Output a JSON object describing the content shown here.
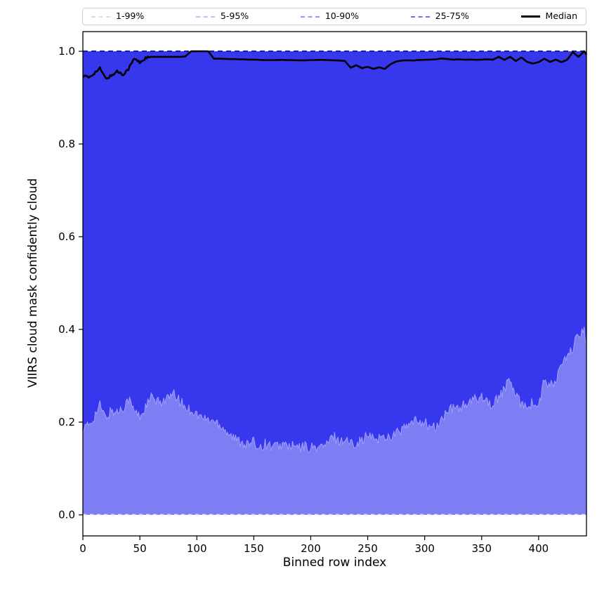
{
  "legend": {
    "items": [
      {
        "label": "1-99%",
        "color": "#d9d9f9",
        "style": "dashed",
        "weight": 2
      },
      {
        "label": "5-95%",
        "color": "#bebef6",
        "style": "dashed",
        "weight": 2
      },
      {
        "label": "10-90%",
        "color": "#9898f2",
        "style": "dashed",
        "weight": 2
      },
      {
        "label": "25-75%",
        "color": "#7171ef",
        "style": "dashed",
        "weight": 2
      },
      {
        "label": "Median",
        "color": "#000000",
        "style": "solid",
        "weight": 3
      }
    ]
  },
  "axes": {
    "xlabel": "Binned row index",
    "ylabel": "VIIRS cloud mask confidently cloud",
    "x_ticks": [
      {
        "value": 0,
        "label": "0"
      },
      {
        "value": 50,
        "label": "50"
      },
      {
        "value": 100,
        "label": "100"
      },
      {
        "value": 150,
        "label": "150"
      },
      {
        "value": 200,
        "label": "200"
      },
      {
        "value": 250,
        "label": "250"
      },
      {
        "value": 300,
        "label": "300"
      },
      {
        "value": 350,
        "label": "350"
      },
      {
        "value": 400,
        "label": "400"
      }
    ],
    "y_ticks": [
      {
        "value": 0.0,
        "label": "0.0"
      },
      {
        "value": 0.2,
        "label": "0.2"
      },
      {
        "value": 0.4,
        "label": "0.4"
      },
      {
        "value": 0.6,
        "label": "0.6"
      },
      {
        "value": 0.8,
        "label": "0.8"
      },
      {
        "value": 1.0,
        "label": "1.0"
      }
    ],
    "xlim": [
      0,
      442
    ],
    "ylim": [
      -0.045,
      1.043
    ]
  },
  "chart_data": {
    "type": "area",
    "title": "",
    "xlabel": "Binned row index",
    "ylabel": "VIIRS cloud mask confidently cloud",
    "legend_position": "top",
    "grid": false,
    "description": "Percentile fan chart: 1-99%, 5-95%, 10-90% bands span 0 to 1 (upper percentiles at 1.0, lower at 0.0); the 25-75% band spans p25_boundary to 1.0; thick black median line near 1.0.",
    "x": [
      0,
      5,
      10,
      15,
      20,
      25,
      30,
      35,
      40,
      45,
      50,
      55,
      60,
      65,
      70,
      75,
      80,
      85,
      90,
      95,
      100,
      105,
      110,
      115,
      120,
      125,
      130,
      135,
      140,
      145,
      150,
      155,
      160,
      165,
      170,
      175,
      180,
      185,
      190,
      195,
      200,
      205,
      210,
      215,
      220,
      225,
      230,
      235,
      240,
      245,
      250,
      255,
      260,
      265,
      270,
      275,
      280,
      285,
      290,
      295,
      300,
      305,
      310,
      315,
      320,
      325,
      330,
      335,
      340,
      345,
      350,
      355,
      360,
      365,
      370,
      375,
      380,
      385,
      390,
      395,
      400,
      405,
      410,
      415,
      420,
      425,
      430,
      435,
      440,
      442
    ],
    "series": [
      {
        "name": "median",
        "values": [
          0.948,
          0.943,
          0.953,
          0.963,
          0.941,
          0.947,
          0.957,
          0.95,
          0.962,
          0.984,
          0.976,
          0.985,
          0.988,
          0.988,
          0.988,
          0.988,
          0.988,
          0.988,
          0.989,
          1.0,
          1.0,
          1.0,
          1.0,
          0.984,
          0.984,
          0.9835,
          0.983,
          0.983,
          0.9825,
          0.982,
          0.982,
          0.9815,
          0.981,
          0.981,
          0.9812,
          0.9815,
          0.981,
          0.9808,
          0.9805,
          0.9805,
          0.981,
          0.9812,
          0.9815,
          0.981,
          0.9805,
          0.98,
          0.979,
          0.9645,
          0.97,
          0.9635,
          0.9665,
          0.962,
          0.9655,
          0.962,
          0.972,
          0.978,
          0.98,
          0.9805,
          0.98,
          0.9812,
          0.9815,
          0.982,
          0.9828,
          0.9845,
          0.9832,
          0.982,
          0.9825,
          0.9818,
          0.9822,
          0.9815,
          0.982,
          0.9825,
          0.982,
          0.988,
          0.9815,
          0.988,
          0.979,
          0.9865,
          0.977,
          0.9735,
          0.9765,
          0.984,
          0.977,
          0.982,
          0.9765,
          0.9815,
          0.998,
          0.988,
          1.0,
          0.993
        ]
      },
      {
        "name": "p25_boundary",
        "values": [
          0.185,
          0.192,
          0.212,
          0.236,
          0.208,
          0.225,
          0.221,
          0.231,
          0.251,
          0.224,
          0.212,
          0.231,
          0.254,
          0.241,
          0.247,
          0.252,
          0.258,
          0.246,
          0.231,
          0.227,
          0.217,
          0.209,
          0.205,
          0.202,
          0.197,
          0.184,
          0.171,
          0.161,
          0.158,
          0.151,
          0.156,
          0.147,
          0.153,
          0.149,
          0.147,
          0.152,
          0.149,
          0.147,
          0.144,
          0.148,
          0.144,
          0.146,
          0.147,
          0.153,
          0.171,
          0.159,
          0.163,
          0.154,
          0.157,
          0.161,
          0.171,
          0.164,
          0.166,
          0.168,
          0.169,
          0.176,
          0.183,
          0.191,
          0.199,
          0.204,
          0.199,
          0.189,
          0.187,
          0.206,
          0.223,
          0.229,
          0.233,
          0.236,
          0.241,
          0.251,
          0.258,
          0.246,
          0.233,
          0.256,
          0.271,
          0.293,
          0.253,
          0.241,
          0.236,
          0.241,
          0.233,
          0.291,
          0.276,
          0.287,
          0.326,
          0.336,
          0.361,
          0.386,
          0.402,
          0.368
        ]
      }
    ],
    "band_upper_bound": 1.0,
    "band_lower_bound_zero_percentiles": [
      "1%",
      "5%",
      "10%"
    ],
    "colors": {
      "band_dark": "#3737ee",
      "band_light": "#7e7ef4",
      "boundary_stroke": "#9f9ff8",
      "top_dashed_line": "#1a1aa8",
      "zero_dashed_line": "#d9d9fc",
      "median": "#000000"
    },
    "render": {
      "p25_noise": 0.012,
      "median_noise": 0.003,
      "median_noise_xmax": 58
    }
  }
}
